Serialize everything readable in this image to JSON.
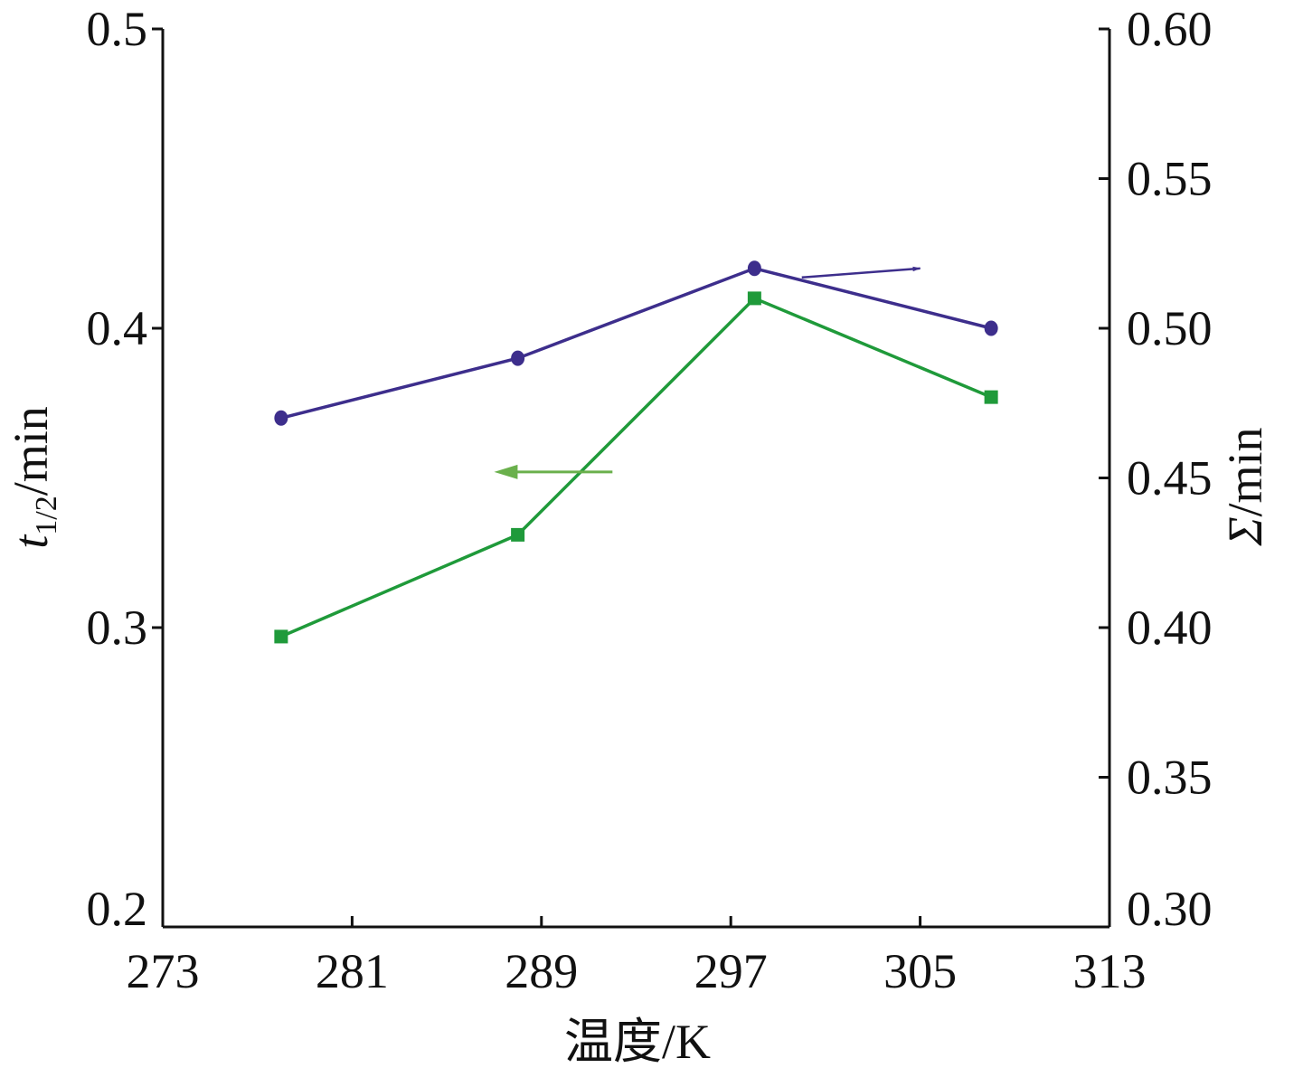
{
  "chart_data": {
    "type": "line",
    "xlabel": "温度/K",
    "ylabel_left": {
      "main": "t",
      "sub": "1/2",
      "unit": "/min"
    },
    "ylabel_right": {
      "main": "Σ",
      "unit": "/min"
    },
    "xlim": [
      273,
      313
    ],
    "xticks": [
      "273",
      "281",
      "289",
      "297",
      "305",
      "313"
    ],
    "ylim_left": [
      0.2,
      0.5
    ],
    "yticks_left": [
      "0.2",
      "0.3",
      "0.4",
      "0.5"
    ],
    "ylim_right": [
      0.3,
      0.6
    ],
    "yticks_right": [
      "0.30",
      "0.35",
      "0.40",
      "0.45",
      "0.50",
      "0.55",
      "0.60"
    ],
    "grid": false,
    "series": [
      {
        "axis": "right",
        "marker": "circle",
        "color": "#3d2e8c",
        "x": [
          278,
          288,
          298,
          308
        ],
        "y": [
          0.47,
          0.49,
          0.52,
          0.5
        ]
      },
      {
        "axis": "left",
        "marker": "square",
        "color": "#1f9a3a",
        "x": [
          278,
          288,
          298,
          308
        ],
        "y": [
          0.297,
          0.331,
          0.41,
          0.377
        ]
      }
    ],
    "annotations": [
      {
        "type": "arrow",
        "direction": "right",
        "axis": "right",
        "color": "#3d2e8c",
        "x_from": 300,
        "x_to": 305,
        "y": 0.52
      },
      {
        "type": "arrow",
        "direction": "left",
        "axis": "left",
        "color": "#6ab04c",
        "x_from": 292,
        "x_to": 287,
        "y": 0.352
      }
    ]
  }
}
